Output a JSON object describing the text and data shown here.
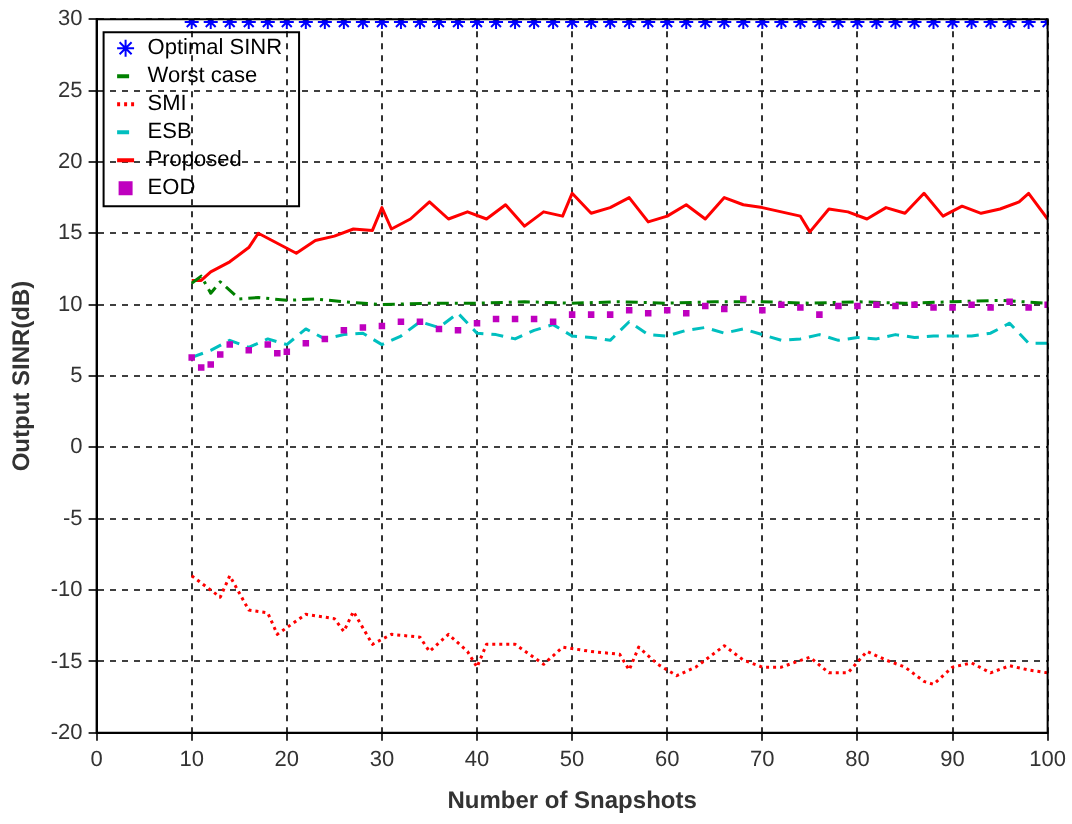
{
  "chart_data": {
    "type": "line",
    "xlabel": "Number of Snapshots",
    "ylabel": "Output SINR(dB)",
    "xlim": [
      0,
      100
    ],
    "ylim": [
      -20,
      30
    ],
    "xticks": [
      0,
      10,
      20,
      30,
      40,
      50,
      60,
      70,
      80,
      90,
      100
    ],
    "yticks": [
      -20,
      -15,
      -10,
      -5,
      0,
      5,
      10,
      15,
      20,
      25,
      30
    ],
    "grid": true,
    "legend": "top left",
    "series": [
      {
        "name": "Optimal SINR",
        "color": "#0000ff",
        "type": "scatter",
        "marker": "cross",
        "x": [
          10,
          12,
          14,
          16,
          18,
          20,
          22,
          24,
          26,
          28,
          30,
          32,
          34,
          36,
          38,
          40,
          42,
          44,
          46,
          48,
          50,
          52,
          54,
          56,
          58,
          60,
          62,
          64,
          66,
          68,
          70,
          72,
          74,
          76,
          78,
          80,
          82,
          84,
          86,
          88,
          90,
          92,
          94,
          96,
          98,
          100
        ],
        "values": [
          29.8,
          29.8,
          29.8,
          29.8,
          29.8,
          29.8,
          29.8,
          29.8,
          29.8,
          29.8,
          29.8,
          29.8,
          29.8,
          29.8,
          29.8,
          29.8,
          29.8,
          29.8,
          29.8,
          29.8,
          29.8,
          29.8,
          29.8,
          29.8,
          29.8,
          29.8,
          29.8,
          29.8,
          29.8,
          29.8,
          29.8,
          29.8,
          29.8,
          29.8,
          29.8,
          29.8,
          29.8,
          29.8,
          29.8,
          29.8,
          29.8,
          29.8,
          29.8,
          29.8,
          29.8,
          29.8
        ]
      },
      {
        "name": "Worst case",
        "color": "#008000",
        "line_style": "dashdot",
        "x": [
          10,
          11,
          12,
          13,
          15,
          17,
          20,
          23,
          26,
          30,
          35,
          40,
          45,
          50,
          55,
          60,
          65,
          70,
          75,
          80,
          85,
          90,
          95,
          100
        ],
        "values": [
          11.5,
          12,
          10.8,
          11.6,
          10.4,
          10.5,
          10.3,
          10.4,
          10.2,
          10,
          10.1,
          10.1,
          10.2,
          10.1,
          10.2,
          10.1,
          10.2,
          10.2,
          10.1,
          10.2,
          10.1,
          10.2,
          10.3,
          10.1
        ]
      },
      {
        "name": "SMI",
        "color": "#ff0000",
        "line_style": "dotted",
        "x": [
          10,
          13,
          14,
          16,
          18,
          19,
          22,
          25,
          26,
          27,
          29,
          31,
          34,
          35,
          37,
          39,
          40,
          41,
          44,
          47,
          49,
          52,
          55,
          56,
          57,
          59,
          61,
          63,
          66,
          68,
          70,
          72,
          75,
          77,
          79,
          81,
          83,
          85,
          87,
          88,
          90,
          92,
          94,
          96,
          98,
          100
        ],
        "values": [
          -9,
          -10.5,
          -9,
          -11.4,
          -11.6,
          -13.1,
          -11.7,
          -12,
          -12.9,
          -11.5,
          -13.8,
          -13.1,
          -13.3,
          -14.3,
          -13.1,
          -14.3,
          -15.4,
          -13.8,
          -13.8,
          -15.2,
          -14,
          -14.3,
          -14.5,
          -15.6,
          -14,
          -15.2,
          -16,
          -15.4,
          -13.9,
          -14.9,
          -15.4,
          -15.4,
          -14.7,
          -15.8,
          -15.8,
          -14.3,
          -14.9,
          -15.4,
          -16.4,
          -16.6,
          -15.4,
          -15.1,
          -15.8,
          -15.3,
          -15.6,
          -15.8
        ]
      },
      {
        "name": "ESB",
        "color": "#00bfbf",
        "line_style": "dashed",
        "x": [
          10,
          12,
          14,
          16,
          18,
          20,
          22,
          24,
          26,
          28,
          30,
          32,
          34,
          36,
          38,
          40,
          42,
          44,
          46,
          48,
          50,
          52,
          54,
          56,
          58,
          60,
          62,
          64,
          66,
          68,
          70,
          72,
          74,
          76,
          78,
          80,
          82,
          84,
          86,
          88,
          90,
          92,
          94,
          96,
          98,
          100
        ],
        "values": [
          6.3,
          6.8,
          7.5,
          7,
          7.6,
          7.2,
          8.3,
          7.6,
          7.9,
          8,
          7.2,
          7.8,
          8.8,
          8.4,
          9.4,
          8,
          7.9,
          7.6,
          8.2,
          8.6,
          7.8,
          7.7,
          7.5,
          8.8,
          7.9,
          7.8,
          8.2,
          8.4,
          8,
          8.3,
          7.9,
          7.5,
          7.6,
          7.9,
          7.5,
          7.7,
          7.6,
          7.9,
          7.7,
          7.8,
          7.8,
          7.8,
          8,
          8.7,
          7.3,
          7.3
        ]
      },
      {
        "name": "Proposed",
        "color": "#ff0000",
        "line_style": "solid",
        "x": [
          10,
          11,
          12,
          14,
          16,
          17,
          19,
          21,
          23,
          25,
          27,
          29,
          30,
          31,
          33,
          35,
          37,
          39,
          41,
          43,
          45,
          47,
          49,
          50,
          52,
          54,
          56,
          58,
          60,
          62,
          64,
          66,
          68,
          70,
          72,
          74,
          75,
          77,
          79,
          81,
          83,
          85,
          87,
          89,
          91,
          93,
          95,
          97,
          98,
          100
        ],
        "values": [
          11.7,
          11.7,
          12.3,
          13,
          14,
          15,
          14.3,
          13.6,
          14.5,
          14.8,
          15.3,
          15.2,
          16.8,
          15.3,
          16,
          17.2,
          16,
          16.5,
          16,
          17,
          15.5,
          16.5,
          16.2,
          17.8,
          16.4,
          16.8,
          17.5,
          15.8,
          16.2,
          17,
          16,
          17.5,
          17,
          16.8,
          16.5,
          16.2,
          15.1,
          16.7,
          16.5,
          16,
          16.8,
          16.4,
          17.8,
          16.2,
          16.9,
          16.4,
          16.7,
          17.2,
          17.8,
          16
        ]
      },
      {
        "name": "EOD",
        "color": "#bf00bf",
        "type": "scatter",
        "marker": "square",
        "x": [
          10,
          11,
          12,
          13,
          14,
          16,
          18,
          19,
          20,
          22,
          24,
          26,
          28,
          30,
          32,
          34,
          36,
          38,
          40,
          42,
          44,
          46,
          48,
          50,
          52,
          54,
          56,
          58,
          60,
          62,
          64,
          66,
          68,
          70,
          72,
          74,
          76,
          78,
          80,
          82,
          84,
          86,
          88,
          90,
          92,
          94,
          96,
          98,
          100
        ],
        "values": [
          6.3,
          5.6,
          5.8,
          6.5,
          7.2,
          6.8,
          7.2,
          6.6,
          6.7,
          7.3,
          7.6,
          8.2,
          8.4,
          8.5,
          8.8,
          8.8,
          8.3,
          8.2,
          8.7,
          9,
          9,
          9,
          8.8,
          9.3,
          9.3,
          9.3,
          9.6,
          9.4,
          9.6,
          9.4,
          9.9,
          9.7,
          10.4,
          9.6,
          10,
          9.8,
          9.3,
          9.9,
          9.9,
          10,
          9.9,
          10,
          9.8,
          9.8,
          10,
          9.8,
          10.2,
          9.8,
          10
        ]
      }
    ]
  }
}
